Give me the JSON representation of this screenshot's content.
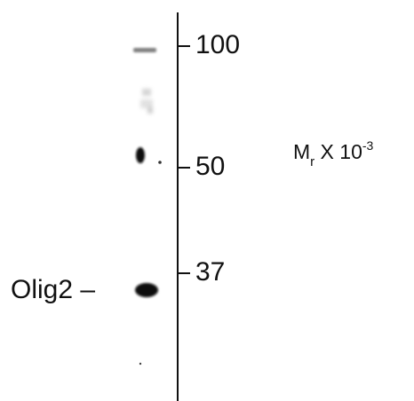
{
  "blot": {
    "markers": [
      {
        "label": "100",
        "kda": 100
      },
      {
        "label": "50",
        "kda": 50
      },
      {
        "label": "37",
        "kda": 37
      }
    ],
    "band": {
      "label": "Olig2 –"
    },
    "units": {
      "prefix": "M",
      "subscript": "r",
      "middle": " X 10",
      "superscript": "-3"
    },
    "colors": {
      "band": "#0a0a0a",
      "axis": "#111111",
      "background": "#ffffff"
    }
  }
}
